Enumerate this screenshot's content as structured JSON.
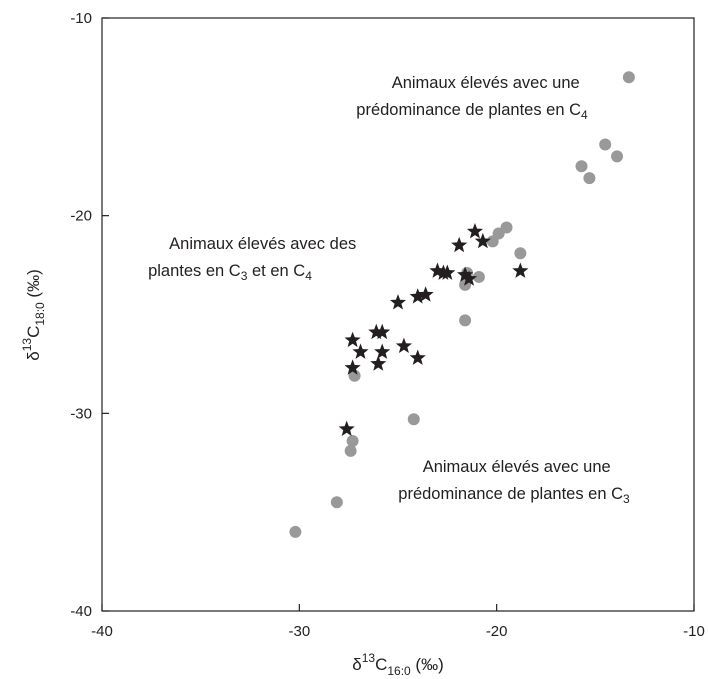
{
  "chart_data": {
    "type": "scatter",
    "title": "",
    "xlabel": {
      "prefix": "δ",
      "sup": "13",
      "main": "C",
      "sub": "16:0",
      "unit": " (‰)"
    },
    "ylabel": {
      "prefix": "δ",
      "sup": "13",
      "main": "C",
      "sub": "18:0",
      "unit": " (‰)"
    },
    "xlim": [
      -40,
      -10
    ],
    "ylim": [
      -40,
      -10
    ],
    "xticks": [
      -40,
      -30,
      -20,
      -10
    ],
    "yticks": [
      -40,
      -30,
      -20,
      -10
    ],
    "xtick_labels": [
      "-40",
      "-30",
      "-20",
      "-10"
    ],
    "ytick_labels": [
      "-40",
      "-30",
      "-20",
      "-10"
    ],
    "grid": false,
    "legend": "none",
    "series": [
      {
        "marker": "circle",
        "color": "#999999",
        "points": [
          {
            "x": -30.2,
            "y": -36.0
          },
          {
            "x": -28.1,
            "y": -34.5
          },
          {
            "x": -27.4,
            "y": -31.9
          },
          {
            "x": -27.3,
            "y": -31.4
          },
          {
            "x": -27.2,
            "y": -28.1
          },
          {
            "x": -24.2,
            "y": -30.3
          },
          {
            "x": -21.6,
            "y": -25.3
          },
          {
            "x": -21.6,
            "y": -23.5
          },
          {
            "x": -21.5,
            "y": -22.9
          },
          {
            "x": -20.9,
            "y": -23.1
          },
          {
            "x": -20.2,
            "y": -21.3
          },
          {
            "x": -19.9,
            "y": -20.9
          },
          {
            "x": -19.5,
            "y": -20.6
          },
          {
            "x": -18.8,
            "y": -21.9
          },
          {
            "x": -15.7,
            "y": -17.5
          },
          {
            "x": -15.3,
            "y": -18.1
          },
          {
            "x": -14.5,
            "y": -16.4
          },
          {
            "x": -13.9,
            "y": -17.0
          },
          {
            "x": -13.3,
            "y": -13.0
          }
        ]
      },
      {
        "marker": "star",
        "color": "#231f20",
        "points": [
          {
            "x": -27.6,
            "y": -30.8
          },
          {
            "x": -27.3,
            "y": -27.7
          },
          {
            "x": -27.3,
            "y": -26.3
          },
          {
            "x": -26.9,
            "y": -26.9
          },
          {
            "x": -26.1,
            "y": -25.9
          },
          {
            "x": -25.8,
            "y": -25.9
          },
          {
            "x": -26.0,
            "y": -27.5
          },
          {
            "x": -25.8,
            "y": -26.9
          },
          {
            "x": -25.0,
            "y": -24.4
          },
          {
            "x": -24.7,
            "y": -26.6
          },
          {
            "x": -24.0,
            "y": -27.2
          },
          {
            "x": -24.0,
            "y": -24.1
          },
          {
            "x": -23.6,
            "y": -24.0
          },
          {
            "x": -23.0,
            "y": -22.8
          },
          {
            "x": -22.7,
            "y": -22.9
          },
          {
            "x": -22.5,
            "y": -22.9
          },
          {
            "x": -21.9,
            "y": -21.5
          },
          {
            "x": -21.6,
            "y": -23.0
          },
          {
            "x": -21.4,
            "y": -23.2
          },
          {
            "x": -21.1,
            "y": -20.8
          },
          {
            "x": -20.7,
            "y": -21.3
          },
          {
            "x": -18.8,
            "y": -22.8
          }
        ]
      }
    ],
    "annotations": [
      {
        "lines": [
          {
            "text": "Animaux élevés avec une"
          },
          {
            "text": "prédominance de plantes en C",
            "sub": "4"
          }
        ]
      },
      {
        "lines": [
          {
            "text": "Animaux élevés avec des"
          },
          {
            "text": "plantes en C",
            "sub": "3",
            "text2": " et en C",
            "sub2": "4"
          }
        ]
      },
      {
        "lines": [
          {
            "text": "Animaux élevés avec une"
          },
          {
            "text": "prédominance de plantes en C",
            "sub": "3"
          }
        ]
      }
    ]
  }
}
